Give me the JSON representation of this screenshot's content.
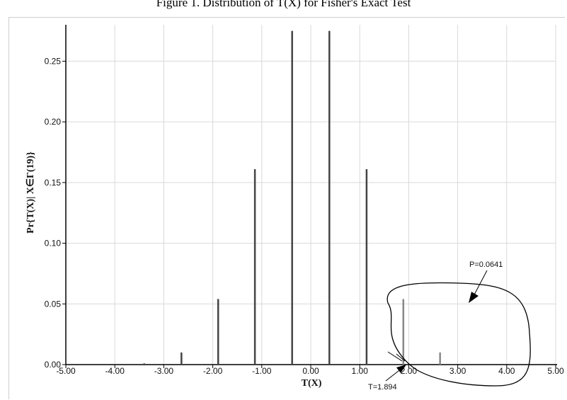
{
  "page": {
    "title": "Figure 1. Distribution of T(X) for Fisher's Exact Test"
  },
  "chart_data": {
    "type": "bar",
    "title": "Figure 1. Distribution of T(X) for Fisher's Exact Test",
    "xlabel": "T(X)",
    "ylabel": "Pr{T(X)| X∈Γ(19)}",
    "xlim": [
      -5.0,
      5.0
    ],
    "ylim": [
      0.0,
      0.28
    ],
    "xticks": [
      -5.0,
      -4.0,
      -3.0,
      -2.0,
      -1.0,
      0.0,
      1.0,
      2.0,
      3.0,
      4.0,
      5.0
    ],
    "xtick_labels": [
      "-5.00",
      "-4.00",
      "-3.00",
      "-2.00",
      "-1.00",
      "0.00",
      "1.00",
      "2.00",
      "3.00",
      "4.00",
      "5.00"
    ],
    "yticks": [
      0.0,
      0.05,
      0.1,
      0.15,
      0.2,
      0.25
    ],
    "ytick_labels": [
      "0.00",
      "0.05",
      "0.10",
      "0.15",
      "0.20",
      "0.25"
    ],
    "grid": true,
    "series": [
      {
        "x": [
          -3.4,
          -2.64,
          -1.89,
          -1.14,
          -0.38,
          0.38,
          1.14,
          1.89,
          2.64
        ],
        "values": [
          0.001,
          0.01,
          0.054,
          0.161,
          0.275,
          0.275,
          0.161,
          0.054,
          0.01
        ]
      }
    ],
    "annotations": [
      {
        "text": "P=0.0641"
      },
      {
        "text": "T=1.894"
      }
    ],
    "colors": {
      "bar": "#444444",
      "bar_highlight": "#888888",
      "grid": "#d9d9d9"
    }
  }
}
